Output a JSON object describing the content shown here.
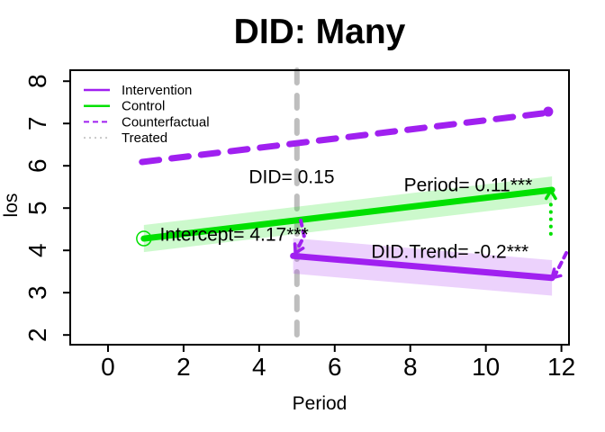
{
  "chart_data": {
    "type": "line",
    "title": "DID: Many",
    "xlabel": "Period",
    "ylabel": "los",
    "x_ticks": [
      0,
      2,
      4,
      6,
      8,
      10,
      12
    ],
    "y_ticks": [
      2,
      3,
      4,
      5,
      6,
      7,
      8
    ],
    "xlim": [
      -1.0,
      12.2
    ],
    "ylim": [
      1.77,
      8.26
    ],
    "grid": false,
    "legend_position": "top-left",
    "intervention_time": 5,
    "colors": {
      "intervention": "#A020F0",
      "control": "#00E000",
      "counterfactual": "#A020F0",
      "treated": "#C8C8C8",
      "vline": "#BEBEBE",
      "text": "#000000",
      "axis": "#000000",
      "band_opacity": 0.2
    },
    "legend": [
      {
        "label": "Intervention",
        "color": "#A020F0",
        "line_style": "solid"
      },
      {
        "label": "Control",
        "color": "#00E000",
        "line_style": "solid"
      },
      {
        "label": "Counterfactual",
        "color": "#A020F0",
        "line_style": "dashed"
      },
      {
        "label": "Treated",
        "color": "#C8C8C8",
        "line_style": "dotted"
      }
    ],
    "series": [
      {
        "name": "Control",
        "line_style": "solid",
        "color": "#00E000",
        "x": [
          0.95,
          11.75
        ],
        "y": [
          4.28,
          5.43
        ],
        "band_halfwidth": 0.32,
        "start_marker": "open-circle"
      },
      {
        "name": "Counterfactual",
        "line_style": "dashed",
        "color": "#A020F0",
        "x": [
          0.9,
          11.7
        ],
        "y": [
          6.09,
          7.26
        ],
        "end_marker": "filled-circle",
        "end_marker_at": [
          11.65,
          7.28
        ]
      },
      {
        "name": "Intervention",
        "line_style": "solid",
        "color": "#A020F0",
        "x": [
          4.9,
          11.75
        ],
        "y": [
          3.87,
          3.35
        ],
        "band_halfwidth": 0.42
      }
    ],
    "annotations": [
      {
        "text": "DID= 0.15",
        "x": 4.86,
        "y": 5.73
      },
      {
        "text": "Period= 0.11***",
        "x": 9.53,
        "y": 5.54
      },
      {
        "text": "Intercept= 4.17***",
        "x": 3.34,
        "y": 4.37
      },
      {
        "text": "DID.Trend= -0.2***",
        "x": 9.05,
        "y": 3.96
      }
    ],
    "arrows": [
      {
        "color": "#00E000",
        "line_style": "dotted",
        "points": [
          [
            11.72,
            4.39
          ],
          [
            11.72,
            5.2
          ]
        ],
        "tip": [
          11.72,
          5.41
        ]
      },
      {
        "color": "#A020F0",
        "line_style": "dashed",
        "points": [
          [
            12.13,
            3.94
          ],
          [
            11.84,
            3.43
          ]
        ],
        "tip": [
          11.75,
          3.35
        ]
      },
      {
        "color": "#A020F0",
        "line_style": "dashed",
        "points": [
          [
            5.1,
            4.71
          ],
          [
            5.19,
            4.34
          ],
          [
            5.03,
            4.06
          ]
        ],
        "tip": [
          4.96,
          3.94
        ]
      }
    ]
  }
}
